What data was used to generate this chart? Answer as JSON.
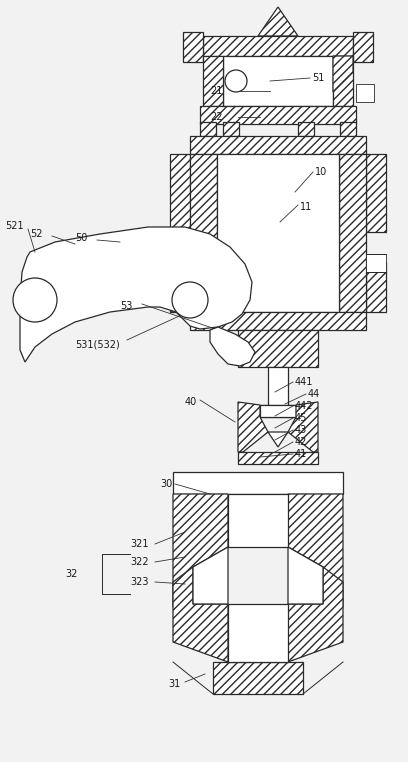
{
  "bg_color": "#f2f2f2",
  "line_color": "#2a2a2a",
  "fig_width": 4.08,
  "fig_height": 7.62,
  "dpi": 100
}
